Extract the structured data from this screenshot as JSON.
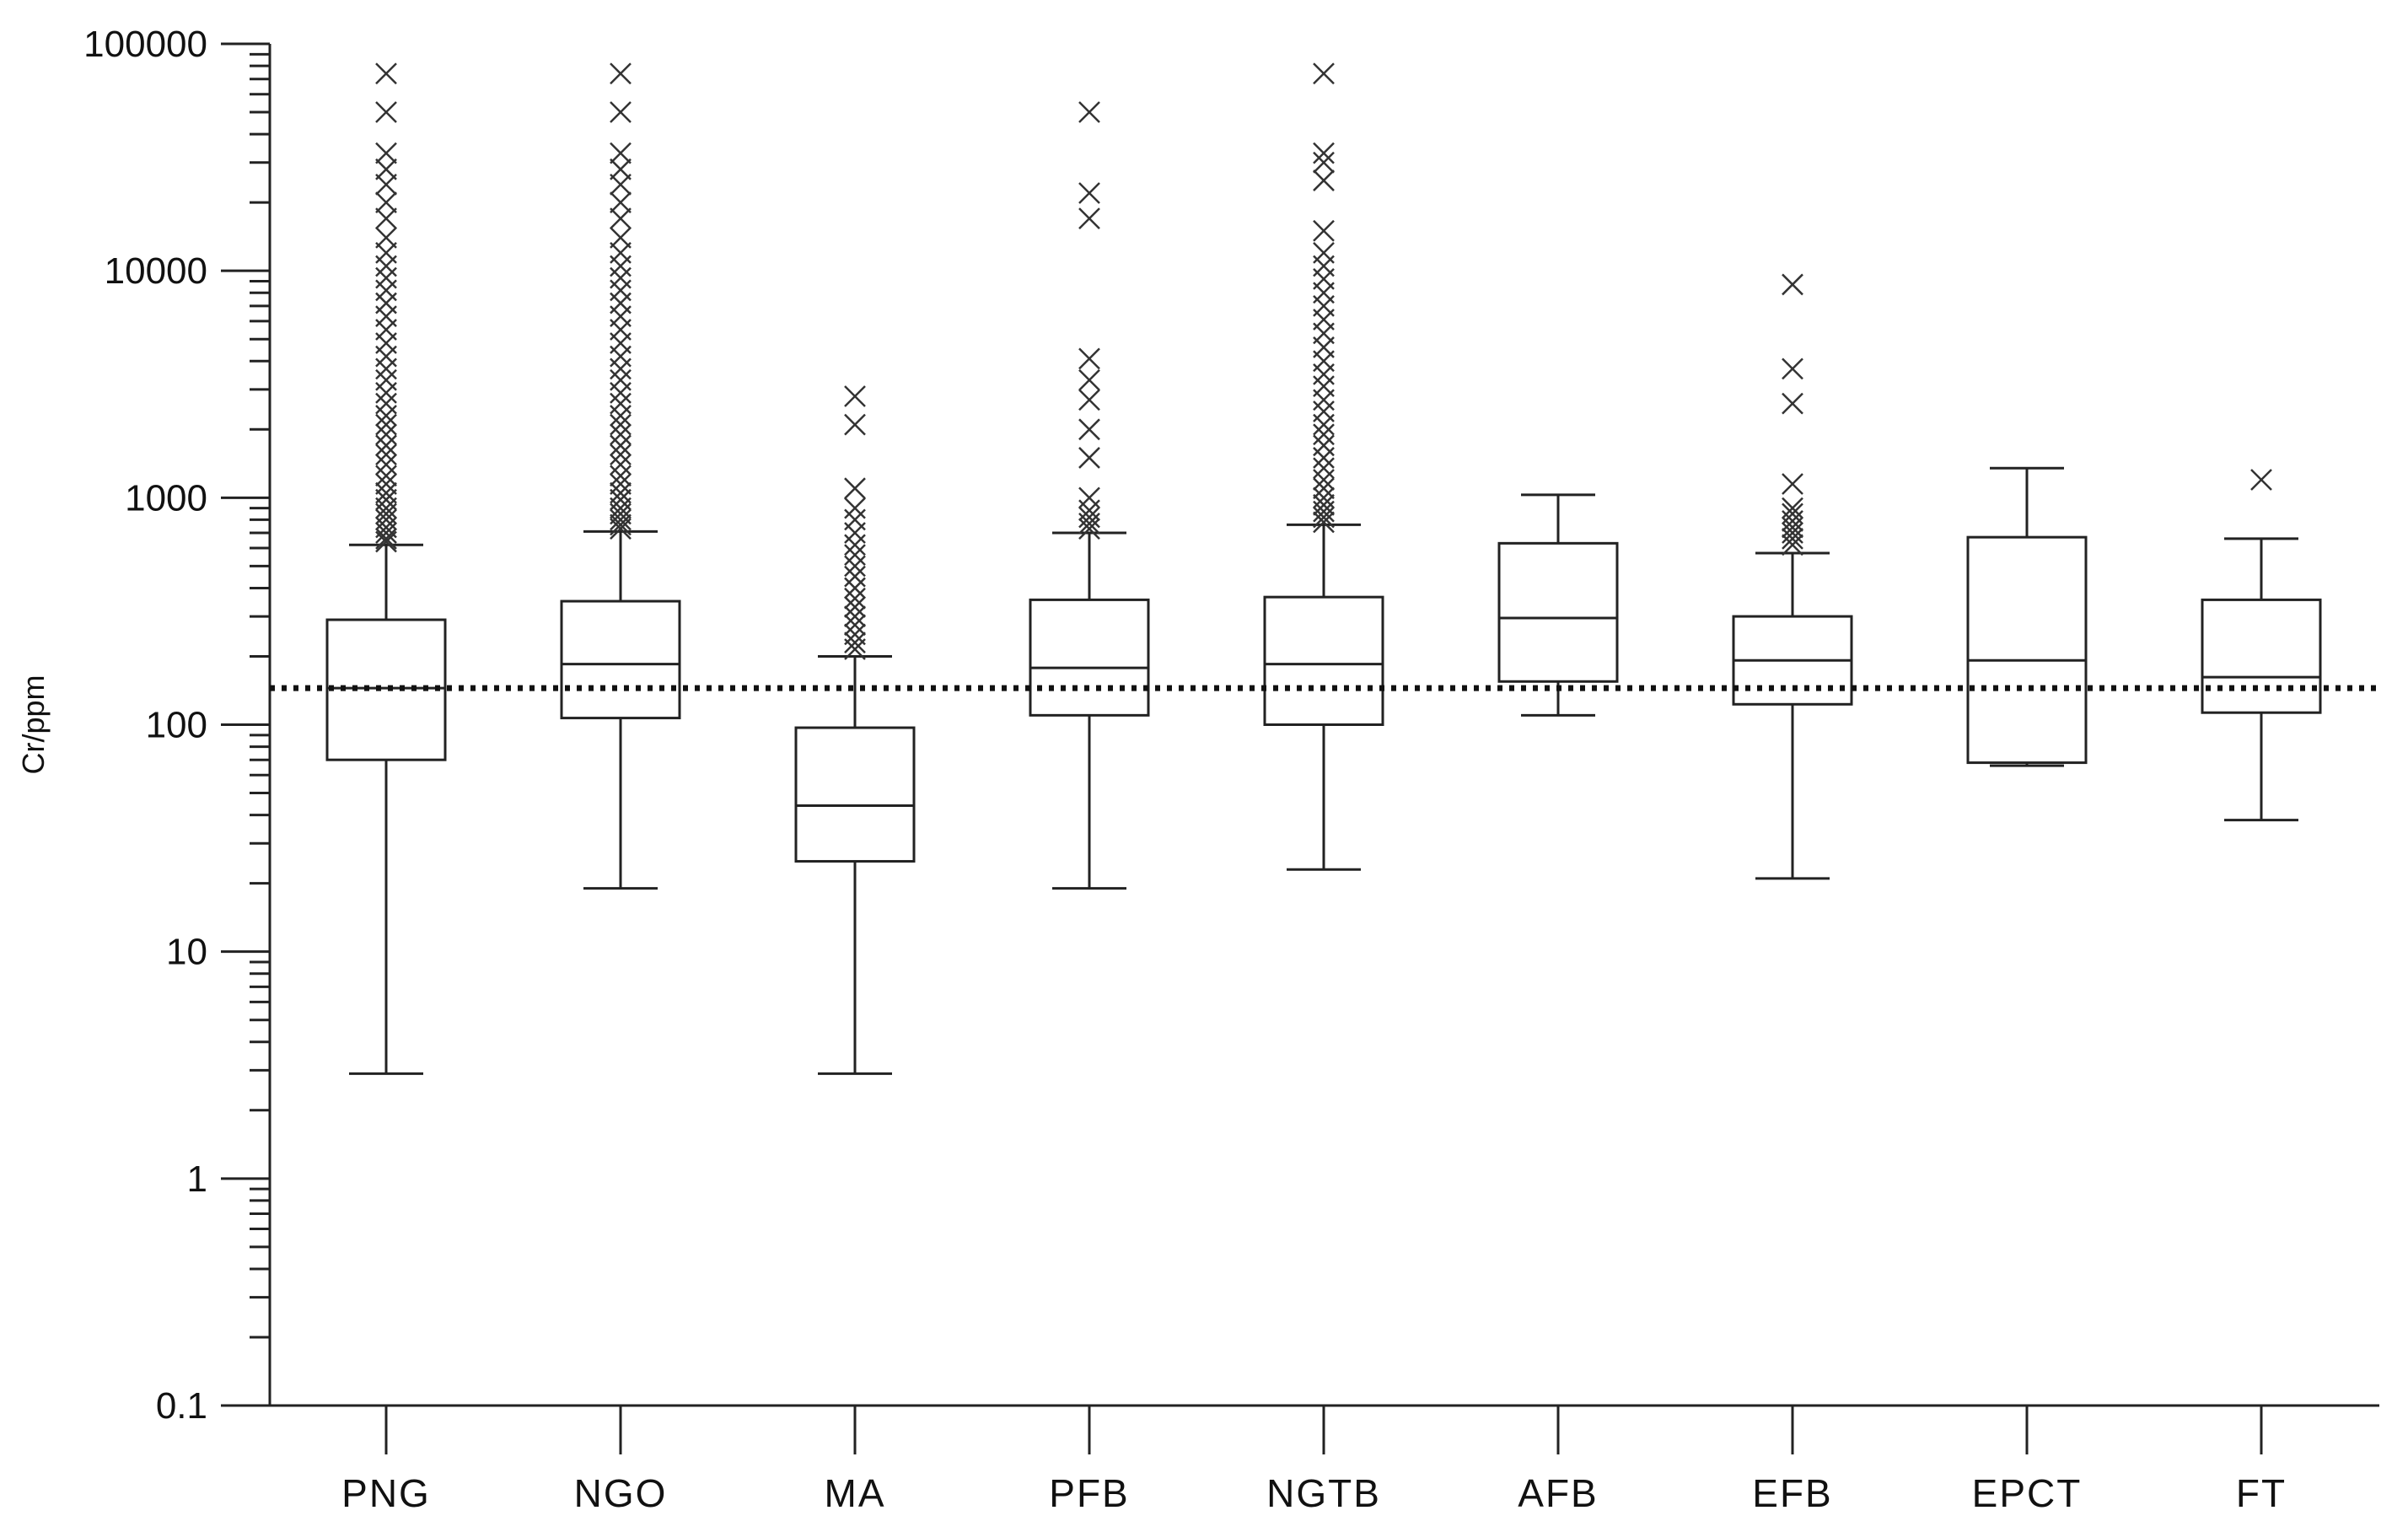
{
  "chart_data": {
    "type": "box",
    "title": "",
    "xlabel": "",
    "ylabel": "Cr/ppm",
    "yscale": "log",
    "ylim": [
      0.1,
      100000
    ],
    "yticks": [
      {
        "value": 0.1,
        "label": "0.1"
      },
      {
        "value": 1,
        "label": "1"
      },
      {
        "value": 10,
        "label": "10"
      },
      {
        "value": 100,
        "label": "100"
      },
      {
        "value": 1000,
        "label": "1000"
      },
      {
        "value": 10000,
        "label": "10000"
      },
      {
        "value": 100000,
        "label": "100000"
      }
    ],
    "reference_line": {
      "value": 145,
      "style": "dotted"
    },
    "categories": [
      "PNG",
      "NGO",
      "MA",
      "PFB",
      "NGTB",
      "AFB",
      "EFB",
      "EPCT",
      "FT"
    ],
    "boxes": [
      {
        "name": "PNG",
        "min": 2.9,
        "q1": 70,
        "median": 145,
        "q3": 290,
        "max": 620,
        "outliers": [
          640,
          660,
          700,
          740,
          800,
          850,
          900,
          980,
          1050,
          1150,
          1250,
          1400,
          1550,
          1700,
          1900,
          2100,
          2300,
          2600,
          2900,
          3300,
          3700,
          4200,
          4800,
          5500,
          6300,
          7200,
          8200,
          9300,
          10500,
          12000,
          14000,
          17000,
          20000,
          24000,
          28000,
          33000,
          50000,
          74000
        ]
      },
      {
        "name": "NGO",
        "min": 19,
        "q1": 107,
        "median": 185,
        "q3": 350,
        "max": 710,
        "outliers": [
          730,
          760,
          800,
          850,
          900,
          980,
          1050,
          1150,
          1250,
          1400,
          1550,
          1700,
          1900,
          2100,
          2300,
          2600,
          2900,
          3300,
          3700,
          4200,
          4800,
          5500,
          6300,
          7200,
          8200,
          9300,
          10500,
          12000,
          14000,
          17000,
          20000,
          24000,
          28000,
          33000,
          50000,
          74000
        ]
      },
      {
        "name": "MA",
        "min": 2.9,
        "q1": 25,
        "median": 44,
        "q3": 97,
        "max": 200,
        "outliers": [
          215,
          230,
          250,
          275,
          300,
          330,
          360,
          400,
          450,
          500,
          560,
          620,
          700,
          800,
          900,
          1100,
          2100,
          2800
        ]
      },
      {
        "name": "PFB",
        "min": 19,
        "q1": 110,
        "median": 178,
        "q3": 355,
        "max": 700,
        "outliers": [
          730,
          770,
          820,
          880,
          1000,
          1500,
          2000,
          2700,
          3300,
          4100,
          17000,
          22000,
          50000
        ]
      },
      {
        "name": "NGTB",
        "min": 23,
        "q1": 100,
        "median": 185,
        "q3": 365,
        "max": 760,
        "outliers": [
          780,
          820,
          870,
          930,
          1000,
          1100,
          1200,
          1350,
          1500,
          1700,
          1900,
          2100,
          2400,
          2700,
          3100,
          3500,
          4000,
          4600,
          5300,
          6100,
          7000,
          8000,
          9200,
          10500,
          12000,
          15000,
          25000,
          30000,
          33000,
          74000
        ]
      },
      {
        "name": "AFB",
        "min": 110,
        "q1": 155,
        "median": 295,
        "q3": 630,
        "max": 1030,
        "outliers": []
      },
      {
        "name": "EFB",
        "min": 21,
        "q1": 123,
        "median": 192,
        "q3": 300,
        "max": 570,
        "outliers": [
          620,
          660,
          700,
          740,
          790,
          850,
          900,
          1150,
          2600,
          3700,
          8700
        ]
      },
      {
        "name": "EPCT",
        "min": 66,
        "q1": 68,
        "median": 192,
        "q3": 670,
        "max": 1350,
        "outliers": []
      },
      {
        "name": "FT",
        "min": 38,
        "q1": 113,
        "median": 162,
        "q3": 355,
        "max": 660,
        "outliers": [
          1200
        ]
      }
    ]
  }
}
